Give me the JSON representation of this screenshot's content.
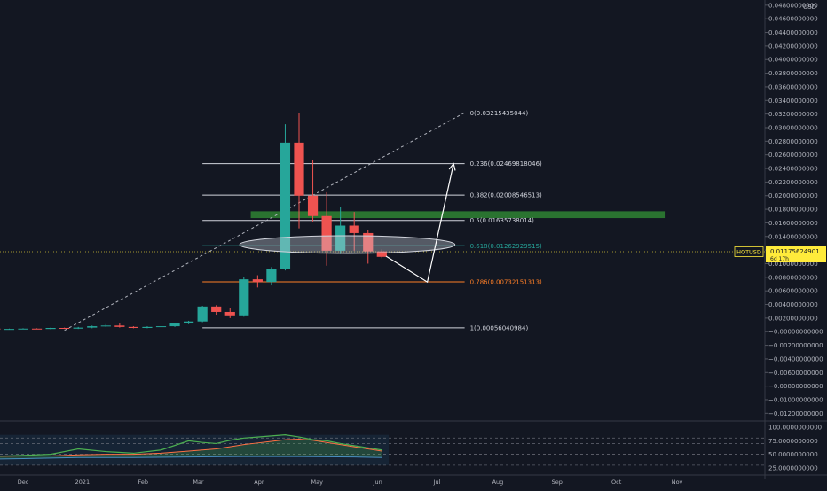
{
  "chart_data": {
    "type": "candlestick",
    "symbol": "HOTUSD",
    "currency": "USD",
    "price_axis": {
      "ylim": [
        -0.013,
        0.0485
      ],
      "ticks": [
        "0.04800000000",
        "0.04600000000",
        "0.04400000000",
        "0.04200000000",
        "0.04000000000",
        "0.03800000000",
        "0.03600000000",
        "0.03400000000",
        "0.03200000000",
        "0.03000000000",
        "0.02800000000",
        "0.02600000000",
        "0.02400000000",
        "0.02200000000",
        "0.02000000000",
        "0.01800000000",
        "0.01600000000",
        "0.01400000000",
        "0.01200000000",
        "0.01000000000",
        "0.00800000000",
        "0.00600000000",
        "0.00400000000",
        "0.00200000000",
        "−0.00000000000",
        "−0.00200000000",
        "−0.00400000000",
        "−0.00600000000",
        "−0.00800000000",
        "−0.01000000000",
        "−0.01200000000"
      ]
    },
    "time_axis": {
      "labels": [
        "Dec",
        "2021",
        "Feb",
        "Mar",
        "Apr",
        "May",
        "Jun",
        "Jul",
        "Aug",
        "Sep",
        "Oct",
        "Nov"
      ],
      "weeks": [
        0,
        4.3,
        8.7,
        12.7,
        17.1,
        21.3,
        25.7,
        30,
        34.4,
        38.7,
        43,
        47.4
      ]
    },
    "current_price": {
      "symbol": "HOTUSD",
      "value": "0.01175624901",
      "countdown": "6d 17h",
      "price": 0.01175624901,
      "color": "#ffeb3b"
    },
    "candles": [
      {
        "w": -5,
        "o": 0.0004,
        "h": 0.00045,
        "l": 0.00035,
        "c": 0.0004
      },
      {
        "w": -4,
        "o": 0.0004,
        "h": 0.00045,
        "l": 0.00035,
        "c": 0.0004
      },
      {
        "w": -3,
        "o": 0.0004,
        "h": 0.0005,
        "l": 0.00035,
        "c": 0.00045
      },
      {
        "w": -2,
        "o": 0.00045,
        "h": 0.0005,
        "l": 0.0004,
        "c": 0.0004
      },
      {
        "w": -1,
        "o": 0.0004,
        "h": 0.00045,
        "l": 0.00035,
        "c": 0.0004
      },
      {
        "w": 0,
        "o": 0.0004,
        "h": 0.0005,
        "l": 0.00035,
        "c": 0.00045
      },
      {
        "w": 1,
        "o": 0.00045,
        "h": 0.0005,
        "l": 0.0004,
        "c": 0.0004
      },
      {
        "w": 2,
        "o": 0.0004,
        "h": 0.0006,
        "l": 0.00035,
        "c": 0.00055
      },
      {
        "w": 3,
        "o": 0.00055,
        "h": 0.0006,
        "l": 0.0004,
        "c": 0.00045
      },
      {
        "w": 4,
        "o": 0.00045,
        "h": 0.0007,
        "l": 0.0004,
        "c": 0.0006
      },
      {
        "w": 5,
        "o": 0.0006,
        "h": 0.0009,
        "l": 0.0005,
        "c": 0.0008
      },
      {
        "w": 6,
        "o": 0.0008,
        "h": 0.0011,
        "l": 0.0007,
        "c": 0.0009
      },
      {
        "w": 7,
        "o": 0.0009,
        "h": 0.0012,
        "l": 0.0006,
        "c": 0.0007
      },
      {
        "w": 8,
        "o": 0.0007,
        "h": 0.0008,
        "l": 0.0005,
        "c": 0.00055
      },
      {
        "w": 9,
        "o": 0.00055,
        "h": 0.0008,
        "l": 0.0005,
        "c": 0.0007
      },
      {
        "w": 10,
        "o": 0.0007,
        "h": 0.0009,
        "l": 0.0006,
        "c": 0.0008
      },
      {
        "w": 11,
        "o": 0.0008,
        "h": 0.0012,
        "l": 0.0007,
        "c": 0.0012
      },
      {
        "w": 12,
        "o": 0.0012,
        "h": 0.0016,
        "l": 0.0011,
        "c": 0.0015
      },
      {
        "w": 13,
        "o": 0.0015,
        "h": 0.0038,
        "l": 0.0014,
        "c": 0.0037
      },
      {
        "w": 14,
        "o": 0.0037,
        "h": 0.0039,
        "l": 0.0025,
        "c": 0.0029
      },
      {
        "w": 15,
        "o": 0.0029,
        "h": 0.0035,
        "l": 0.002,
        "c": 0.0024
      },
      {
        "w": 16,
        "o": 0.0024,
        "h": 0.008,
        "l": 0.0022,
        "c": 0.0077
      },
      {
        "w": 17,
        "o": 0.0077,
        "h": 0.0083,
        "l": 0.0065,
        "c": 0.0073
      },
      {
        "w": 18,
        "o": 0.0073,
        "h": 0.0095,
        "l": 0.0068,
        "c": 0.0092
      },
      {
        "w": 19,
        "o": 0.0092,
        "h": 0.0305,
        "l": 0.009,
        "c": 0.0278
      },
      {
        "w": 20,
        "o": 0.0278,
        "h": 0.0322,
        "l": 0.0152,
        "c": 0.02
      },
      {
        "w": 21,
        "o": 0.02,
        "h": 0.0252,
        "l": 0.0162,
        "c": 0.017
      },
      {
        "w": 22,
        "o": 0.017,
        "h": 0.0205,
        "l": 0.0097,
        "c": 0.0119
      },
      {
        "w": 23,
        "o": 0.0119,
        "h": 0.0184,
        "l": 0.0114,
        "c": 0.0156
      },
      {
        "w": 24,
        "o": 0.0156,
        "h": 0.0176,
        "l": 0.0119,
        "c": 0.0145
      },
      {
        "w": 25,
        "o": 0.0145,
        "h": 0.0149,
        "l": 0.01,
        "c": 0.0118
      },
      {
        "w": 26,
        "o": 0.0118,
        "h": 0.0121,
        "l": 0.0108,
        "c": 0.011
      }
    ],
    "fib_levels": [
      {
        "level": "0",
        "label": "0(0.03215435044)",
        "price": 0.03215435044,
        "color": "#d1d4dc"
      },
      {
        "level": "0.236",
        "label": "0.236(0.02469818046)",
        "price": 0.02469818046,
        "color": "#d1d4dc"
      },
      {
        "level": "0.382",
        "label": "0.382(0.02008546513)",
        "price": 0.02008546513,
        "color": "#d1d4dc"
      },
      {
        "level": "0.5",
        "label": "0.5(0.01635738014)",
        "price": 0.01635738014,
        "color": "#d1d4dc"
      },
      {
        "level": "0.618",
        "label": "0.618(0.01262929515)",
        "price": 0.01262929515,
        "color": "#26a69a"
      },
      {
        "level": "0.786",
        "label": "0.786(0.00732151313)",
        "price": 0.00732151313,
        "color": "#ff7f27"
      },
      {
        "level": "1",
        "label": "1(0.00056040984)",
        "price": 0.00056040984,
        "color": "#d1d4dc"
      }
    ],
    "fib_range_weeks": [
      13,
      32
    ],
    "trendline": {
      "from": [
        3,
        0.0002
      ],
      "to": [
        32,
        0.0322
      ]
    },
    "resistance_zone": {
      "from_week": 16.5,
      "to_week": 46.5,
      "price_top": 0.0177,
      "price_bottom": 0.0167,
      "color": "#2e7d32"
    },
    "projection_path": [
      [
        26.3,
        0.0111
      ],
      [
        29.3,
        0.0073
      ],
      [
        31.2,
        0.0247
      ]
    ],
    "highlight_ellipse": {
      "center": [
        23.5,
        0.0128
      ],
      "radius_weeks": 7.8,
      "radius_price": 0.0013
    },
    "oscillator": {
      "ylim": [
        15,
        110
      ],
      "ticks": [
        "100.0000000000",
        "75.0000000000",
        "50.0000000000",
        "25.0000000000"
      ],
      "tick_values": [
        100,
        75,
        50,
        25
      ],
      "bands": [
        80,
        70,
        50,
        30
      ],
      "fast": [
        [
          -5,
          44
        ],
        [
          0,
          48
        ],
        [
          2,
          50
        ],
        [
          4,
          60
        ],
        [
          6,
          55
        ],
        [
          8,
          52
        ],
        [
          10,
          58
        ],
        [
          12,
          75
        ],
        [
          13,
          72
        ],
        [
          14,
          70
        ],
        [
          15,
          76
        ],
        [
          16,
          80
        ],
        [
          17,
          82
        ],
        [
          18,
          84
        ],
        [
          19,
          86
        ],
        [
          20,
          82
        ],
        [
          21,
          77
        ],
        [
          22,
          75
        ],
        [
          23,
          70
        ],
        [
          24,
          66
        ],
        [
          25,
          62
        ],
        [
          26,
          58
        ]
      ],
      "slow": [
        [
          -5,
          45
        ],
        [
          0,
          47
        ],
        [
          2,
          47
        ],
        [
          4,
          49
        ],
        [
          6,
          50
        ],
        [
          8,
          50
        ],
        [
          10,
          52
        ],
        [
          12,
          56
        ],
        [
          13,
          58
        ],
        [
          14,
          60
        ],
        [
          15,
          64
        ],
        [
          16,
          68
        ],
        [
          17,
          71
        ],
        [
          18,
          74
        ],
        [
          19,
          77
        ],
        [
          20,
          78
        ],
        [
          21,
          76
        ],
        [
          22,
          72
        ],
        [
          23,
          68
        ],
        [
          24,
          64
        ],
        [
          25,
          60
        ],
        [
          26,
          56
        ]
      ],
      "base": [
        [
          -5,
          40
        ],
        [
          0,
          42
        ],
        [
          4,
          44
        ],
        [
          8,
          44
        ],
        [
          12,
          45
        ],
        [
          16,
          46
        ],
        [
          20,
          46
        ],
        [
          24,
          45
        ],
        [
          26,
          44
        ]
      ]
    }
  }
}
